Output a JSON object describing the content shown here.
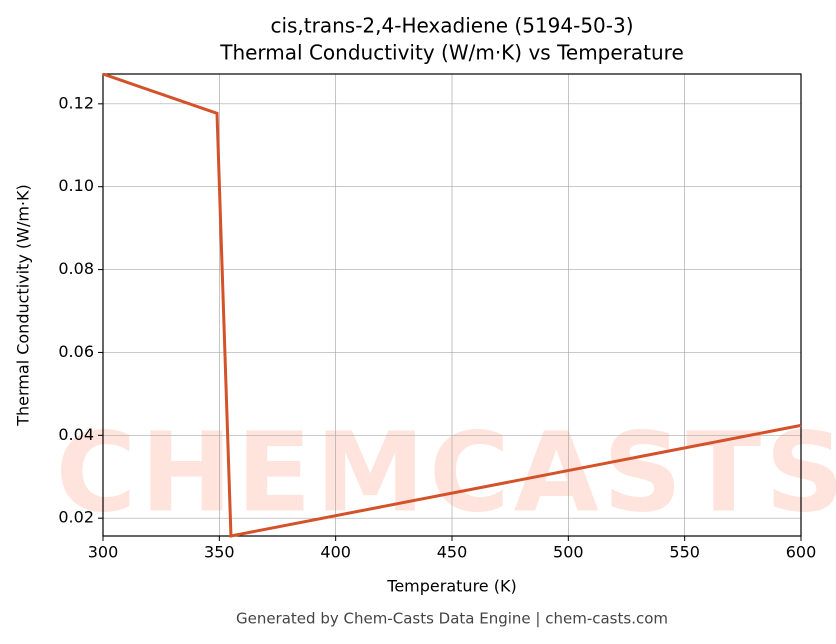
{
  "chart_data": {
    "type": "line",
    "title": "cis,trans-2,4-Hexadiene (5194-50-3)",
    "subtitle": "Thermal Conductivity (W/m·K) vs Temperature",
    "x_label": "Temperature (K)",
    "y_label": "Thermal Conductivity (W/m·K)",
    "footer": "Generated by Chem-Casts Data Engine | chem-casts.com",
    "watermark": "CHEMCASTS",
    "x": [
      300,
      349,
      355,
      600
    ],
    "series": [
      {
        "name": "Thermal Conductivity",
        "color": "#d4522a",
        "values": [
          0.1272,
          0.1177,
          0.0157,
          0.0424
        ]
      }
    ],
    "xlim": [
      300,
      600
    ],
    "xticks": [
      300,
      350,
      400,
      450,
      500,
      550,
      600
    ],
    "ylim": [
      0.0157,
      0.1272
    ],
    "yticks": [
      0.02,
      0.04,
      0.06,
      0.08,
      {
        "value": 0.1,
        "label": "0.10"
      },
      0.12
    ],
    "grid": true,
    "legend": false
  }
}
